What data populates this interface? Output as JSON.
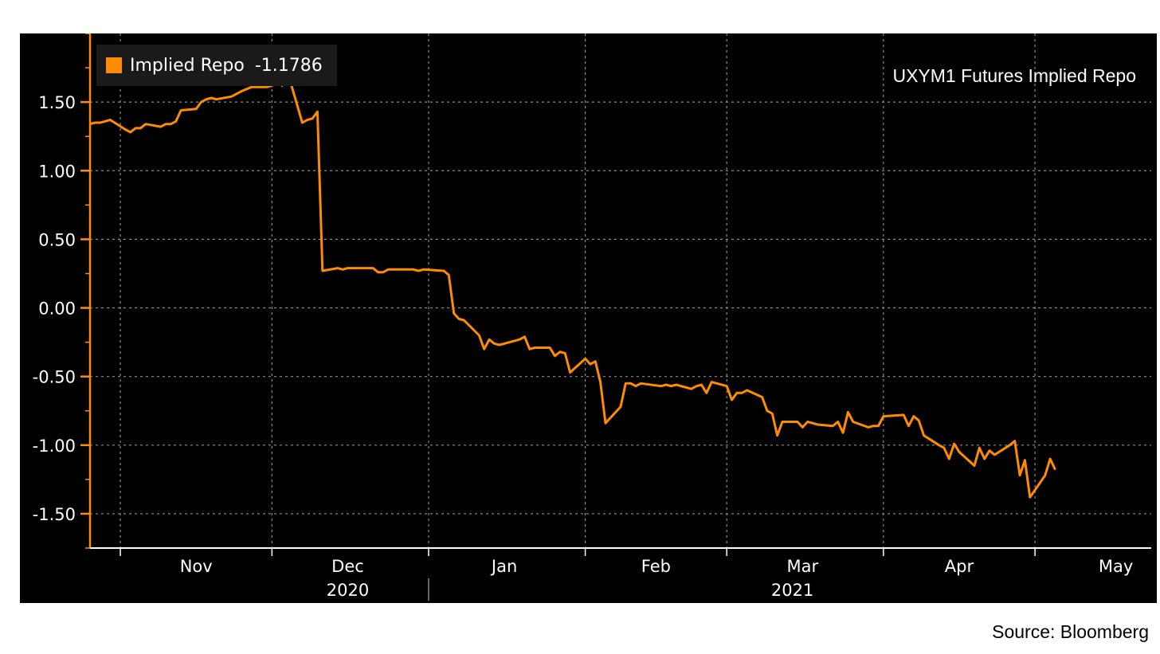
{
  "title": "UXYM1 Futures Implied Repo",
  "source": "Source: Bloomberg",
  "legend": {
    "name": "Implied Repo",
    "last_value": "-1.1786",
    "color": "#ff8c00"
  },
  "chart_data": {
    "type": "line",
    "title": "UXYM1 Futures Implied Repo",
    "xlabel": "",
    "ylabel": "",
    "ylim": [
      -1.75,
      2.0
    ],
    "yticks": [
      {
        "value": 1.5,
        "label": "1.50"
      },
      {
        "value": 1.0,
        "label": "1.00"
      },
      {
        "value": 0.5,
        "label": "0.50"
      },
      {
        "value": 0.0,
        "label": "0.00"
      },
      {
        "value": -0.5,
        "label": "-0.50"
      },
      {
        "value": -1.0,
        "label": "-1.00"
      },
      {
        "value": -1.5,
        "label": "-1.50"
      }
    ],
    "xlim": [
      "2020-10-26",
      "2021-05-24"
    ],
    "months": [
      {
        "label": "Nov",
        "date": "2020-11-16"
      },
      {
        "label": "Dec",
        "date": "2020-12-16"
      },
      {
        "label": "Jan",
        "date": "2021-01-16"
      },
      {
        "label": "Feb",
        "date": "2021-02-15"
      },
      {
        "label": "Mar",
        "date": "2021-03-16"
      },
      {
        "label": "Apr",
        "date": "2021-04-16"
      },
      {
        "label": "May",
        "date": "2021-05-17"
      }
    ],
    "month_boundaries": [
      "2020-11-01",
      "2020-12-01",
      "2021-01-01",
      "2021-02-01",
      "2021-03-01",
      "2021-04-01",
      "2021-05-01"
    ],
    "years": [
      {
        "label": "2020",
        "date": "2020-12-16"
      },
      {
        "label": "2021",
        "date": "2021-03-14"
      }
    ],
    "grid": true,
    "legend_position": "top-left",
    "series": [
      {
        "name": "Implied Repo",
        "color": "#ff8c00",
        "points": [
          [
            "2020-10-26",
            1.34
          ],
          [
            "2020-10-27",
            1.35
          ],
          [
            "2020-10-28",
            1.35
          ],
          [
            "2020-10-29",
            1.36
          ],
          [
            "2020-10-30",
            1.37
          ],
          [
            "2020-11-02",
            1.3
          ],
          [
            "2020-11-03",
            1.28
          ],
          [
            "2020-11-04",
            1.31
          ],
          [
            "2020-11-05",
            1.31
          ],
          [
            "2020-11-06",
            1.34
          ],
          [
            "2020-11-09",
            1.32
          ],
          [
            "2020-11-10",
            1.34
          ],
          [
            "2020-11-11",
            1.34
          ],
          [
            "2020-11-12",
            1.36
          ],
          [
            "2020-11-13",
            1.44
          ],
          [
            "2020-11-16",
            1.45
          ],
          [
            "2020-11-17",
            1.5
          ],
          [
            "2020-11-18",
            1.52
          ],
          [
            "2020-11-19",
            1.53
          ],
          [
            "2020-11-20",
            1.52
          ],
          [
            "2020-11-23",
            1.54
          ],
          [
            "2020-11-24",
            1.56
          ],
          [
            "2020-11-25",
            1.58
          ],
          [
            "2020-11-27",
            1.61
          ],
          [
            "2020-11-30",
            1.61
          ],
          [
            "2020-12-01",
            1.62
          ],
          [
            "2020-12-02",
            1.66
          ],
          [
            "2020-12-03",
            1.62
          ],
          [
            "2020-12-04",
            1.73
          ],
          [
            "2020-12-07",
            1.35
          ],
          [
            "2020-12-08",
            1.37
          ],
          [
            "2020-12-09",
            1.38
          ],
          [
            "2020-12-10",
            1.43
          ],
          [
            "2020-12-11",
            0.27
          ],
          [
            "2020-12-14",
            0.29
          ],
          [
            "2020-12-15",
            0.28
          ],
          [
            "2020-12-16",
            0.29
          ],
          [
            "2020-12-17",
            0.29
          ],
          [
            "2020-12-18",
            0.29
          ],
          [
            "2020-12-21",
            0.29
          ],
          [
            "2020-12-22",
            0.26
          ],
          [
            "2020-12-23",
            0.26
          ],
          [
            "2020-12-24",
            0.28
          ],
          [
            "2020-12-28",
            0.28
          ],
          [
            "2020-12-29",
            0.28
          ],
          [
            "2020-12-30",
            0.27
          ],
          [
            "2020-12-31",
            0.28
          ],
          [
            "2021-01-04",
            0.27
          ],
          [
            "2021-01-05",
            0.24
          ],
          [
            "2021-01-06",
            -0.04
          ],
          [
            "2021-01-07",
            -0.08
          ],
          [
            "2021-01-08",
            -0.09
          ],
          [
            "2021-01-11",
            -0.2
          ],
          [
            "2021-01-12",
            -0.3
          ],
          [
            "2021-01-13",
            -0.23
          ],
          [
            "2021-01-14",
            -0.26
          ],
          [
            "2021-01-15",
            -0.27
          ],
          [
            "2021-01-19",
            -0.23
          ],
          [
            "2021-01-20",
            -0.21
          ],
          [
            "2021-01-21",
            -0.3
          ],
          [
            "2021-01-22",
            -0.29
          ],
          [
            "2021-01-25",
            -0.29
          ],
          [
            "2021-01-26",
            -0.35
          ],
          [
            "2021-01-27",
            -0.32
          ],
          [
            "2021-01-28",
            -0.33
          ],
          [
            "2021-01-29",
            -0.47
          ],
          [
            "2021-02-01",
            -0.37
          ],
          [
            "2021-02-02",
            -0.41
          ],
          [
            "2021-02-03",
            -0.39
          ],
          [
            "2021-02-04",
            -0.54
          ],
          [
            "2021-02-05",
            -0.84
          ],
          [
            "2021-02-08",
            -0.72
          ],
          [
            "2021-02-09",
            -0.55
          ],
          [
            "2021-02-10",
            -0.55
          ],
          [
            "2021-02-11",
            -0.57
          ],
          [
            "2021-02-12",
            -0.55
          ],
          [
            "2021-02-16",
            -0.57
          ],
          [
            "2021-02-17",
            -0.56
          ],
          [
            "2021-02-18",
            -0.57
          ],
          [
            "2021-02-19",
            -0.56
          ],
          [
            "2021-02-22",
            -0.59
          ],
          [
            "2021-02-23",
            -0.57
          ],
          [
            "2021-02-24",
            -0.56
          ],
          [
            "2021-02-25",
            -0.62
          ],
          [
            "2021-02-26",
            -0.54
          ],
          [
            "2021-03-01",
            -0.57
          ],
          [
            "2021-03-02",
            -0.67
          ],
          [
            "2021-03-03",
            -0.62
          ],
          [
            "2021-03-04",
            -0.62
          ],
          [
            "2021-03-05",
            -0.6
          ],
          [
            "2021-03-08",
            -0.65
          ],
          [
            "2021-03-09",
            -0.75
          ],
          [
            "2021-03-10",
            -0.77
          ],
          [
            "2021-03-11",
            -0.93
          ],
          [
            "2021-03-12",
            -0.83
          ],
          [
            "2021-03-15",
            -0.83
          ],
          [
            "2021-03-16",
            -0.87
          ],
          [
            "2021-03-17",
            -0.83
          ],
          [
            "2021-03-18",
            -0.84
          ],
          [
            "2021-03-19",
            -0.85
          ],
          [
            "2021-03-22",
            -0.86
          ],
          [
            "2021-03-23",
            -0.83
          ],
          [
            "2021-03-24",
            -0.91
          ],
          [
            "2021-03-25",
            -0.76
          ],
          [
            "2021-03-26",
            -0.83
          ],
          [
            "2021-03-29",
            -0.87
          ],
          [
            "2021-03-30",
            -0.86
          ],
          [
            "2021-03-31",
            -0.86
          ],
          [
            "2021-04-01",
            -0.79
          ],
          [
            "2021-04-05",
            -0.78
          ],
          [
            "2021-04-06",
            -0.86
          ],
          [
            "2021-04-07",
            -0.79
          ],
          [
            "2021-04-08",
            -0.82
          ],
          [
            "2021-04-09",
            -0.93
          ],
          [
            "2021-04-12",
            -1.0
          ],
          [
            "2021-04-13",
            -1.02
          ],
          [
            "2021-04-14",
            -1.1
          ],
          [
            "2021-04-15",
            -0.99
          ],
          [
            "2021-04-16",
            -1.05
          ],
          [
            "2021-04-19",
            -1.15
          ],
          [
            "2021-04-20",
            -1.02
          ],
          [
            "2021-04-21",
            -1.1
          ],
          [
            "2021-04-22",
            -1.04
          ],
          [
            "2021-04-23",
            -1.07
          ],
          [
            "2021-04-26",
            -1.0
          ],
          [
            "2021-04-27",
            -0.97
          ],
          [
            "2021-04-28",
            -1.22
          ],
          [
            "2021-04-29",
            -1.11
          ],
          [
            "2021-04-30",
            -1.38
          ],
          [
            "2021-05-03",
            -1.22
          ],
          [
            "2021-05-04",
            -1.1
          ],
          [
            "2021-05-05",
            -1.1786
          ]
        ]
      }
    ]
  }
}
